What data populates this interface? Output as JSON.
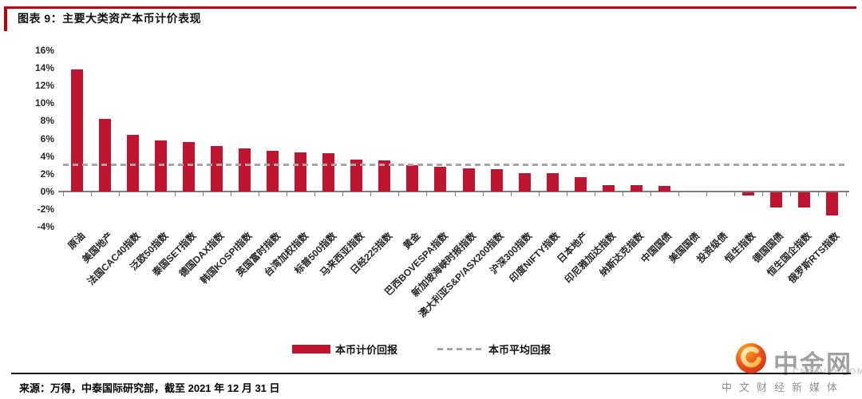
{
  "header": {
    "title": "图表 9：主要大类资产本币计价表现"
  },
  "chart_data": {
    "type": "bar",
    "title": "主要大类资产本币计价表现",
    "categories": [
      "原油",
      "美国地产",
      "法国CAC40指数",
      "泛欧50指数",
      "泰国SET指数",
      "德国DAX指数",
      "韩国KOSPI指数",
      "英国富时指数",
      "台湾加权指数",
      "标普500指数",
      "马来西亚指数",
      "日经225指数",
      "黄金",
      "巴西BOVESPA指数",
      "新加坡海峡时报指数",
      "澳大利亚S&P/ASX200指数",
      "沪深300指数",
      "印度NIFTY指数",
      "日本地产",
      "印尼雅加达指数",
      "纳斯达克指数",
      "中国国债",
      "美国国债",
      "投资级债",
      "恒生指数",
      "德国国债",
      "恒生国企指数",
      "俄罗斯RTS指数"
    ],
    "series": [
      {
        "name": "本币计价回报",
        "values": [
          13.8,
          8.2,
          6.4,
          5.8,
          5.6,
          5.1,
          4.9,
          4.6,
          4.4,
          4.3,
          3.6,
          3.5,
          3.0,
          2.8,
          2.6,
          2.5,
          2.1,
          2.1,
          1.6,
          0.7,
          0.7,
          0.6,
          0.0,
          0.0,
          -0.4,
          -1.7,
          -1.7,
          -2.6
        ]
      }
    ],
    "average_line": {
      "name": "本币平均回报",
      "value": 3.0
    },
    "ylim": [
      -4,
      16
    ],
    "ytick_step": 2,
    "ytick_suffix": "%",
    "grid": false,
    "legend_position": "bottom",
    "bar_color": "#C01530",
    "average_color": "#A6A6A6"
  },
  "legend": {
    "series_label": "本币计价回报",
    "average_label": "本币平均回报"
  },
  "footer": {
    "source": "来源：万得，中泰国际研究部，截至 2021 年 12 月 31 日"
  },
  "logo": {
    "brand": "中金网",
    "domain": "CNGOLD.COM.CN",
    "tagline": "中文财经新媒体"
  },
  "colors": {
    "accent_red": "#C00000",
    "axis": "#7F7F7F",
    "footer_rule": "#1A1A1A",
    "logo_gray": "#A0A0A0"
  }
}
